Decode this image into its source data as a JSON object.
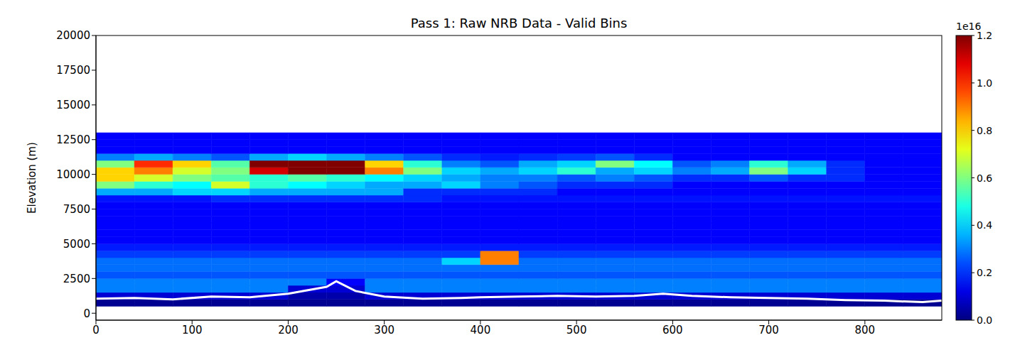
{
  "chart_data": {
    "type": "heatmap",
    "title": "Pass 1: Raw NRB Data - Valid Bins",
    "y_label": "Elevation (m)",
    "grid": false,
    "xlim": [
      0,
      880
    ],
    "xticks": [
      0,
      100,
      200,
      300,
      400,
      500,
      600,
      700,
      800
    ],
    "ylim": [
      -500,
      20000
    ],
    "yticks": [
      0,
      2500,
      5000,
      7500,
      10000,
      12500,
      15000,
      17500,
      20000
    ],
    "cells": {
      "x_edges": [
        0,
        40,
        80,
        120,
        160,
        200,
        240,
        280,
        320,
        360,
        400,
        440,
        480,
        520,
        560,
        600,
        640,
        680,
        720,
        760,
        800,
        840,
        880
      ],
      "y_edges": [
        500,
        1000,
        1500,
        2000,
        2500,
        3000,
        3500,
        4000,
        4500,
        5000,
        5500,
        6000,
        6500,
        7000,
        7500,
        8000,
        8500,
        9000,
        9500,
        10000,
        10500,
        11000,
        11500,
        12000,
        12500,
        13000
      ],
      "values": [
        [
          0.02,
          0.02,
          0.02,
          0.02,
          0.02,
          0.02,
          0.02,
          0.02,
          0.02,
          0.02,
          0.02,
          0.02,
          0.02,
          0.02,
          0.02,
          0.02,
          0.02,
          0.02,
          0.02,
          0.02,
          0.02,
          0.02
        ],
        [
          0.1,
          0.1,
          0.1,
          0.1,
          0.1,
          0.05,
          0.05,
          0.1,
          0.1,
          0.1,
          0.1,
          0.1,
          0.1,
          0.1,
          0.1,
          0.1,
          0.1,
          0.1,
          0.1,
          0.1,
          0.1,
          0.1
        ],
        [
          0.3,
          0.3,
          0.3,
          0.3,
          0.3,
          0.1,
          0.1,
          0.3,
          0.3,
          0.3,
          0.3,
          0.3,
          0.3,
          0.3,
          0.3,
          0.3,
          0.3,
          0.3,
          0.3,
          0.3,
          0.3,
          0.3
        ],
        [
          0.3,
          0.3,
          0.3,
          0.3,
          0.3,
          0.3,
          0.15,
          0.3,
          0.3,
          0.3,
          0.3,
          0.3,
          0.3,
          0.3,
          0.3,
          0.3,
          0.3,
          0.3,
          0.3,
          0.3,
          0.3,
          0.3
        ],
        [
          0.25,
          0.25,
          0.25,
          0.25,
          0.25,
          0.25,
          0.25,
          0.25,
          0.25,
          0.25,
          0.25,
          0.25,
          0.25,
          0.25,
          0.25,
          0.25,
          0.25,
          0.25,
          0.25,
          0.25,
          0.25,
          0.25
        ],
        [
          0.28,
          0.28,
          0.28,
          0.28,
          0.28,
          0.28,
          0.28,
          0.28,
          0.28,
          0.28,
          0.28,
          0.28,
          0.28,
          0.28,
          0.28,
          0.28,
          0.28,
          0.28,
          0.28,
          0.28,
          0.28,
          0.28
        ],
        [
          0.28,
          0.28,
          0.28,
          0.28,
          0.28,
          0.28,
          0.28,
          0.28,
          0.28,
          0.4,
          0.9,
          0.28,
          0.28,
          0.28,
          0.28,
          0.28,
          0.28,
          0.28,
          0.28,
          0.28,
          0.28,
          0.28
        ],
        [
          0.22,
          0.22,
          0.22,
          0.22,
          0.22,
          0.22,
          0.22,
          0.22,
          0.22,
          0.22,
          0.9,
          0.22,
          0.22,
          0.22,
          0.22,
          0.22,
          0.22,
          0.22,
          0.22,
          0.22,
          0.22,
          0.22
        ],
        [
          0.18,
          0.18,
          0.18,
          0.18,
          0.18,
          0.18,
          0.18,
          0.18,
          0.18,
          0.18,
          0.18,
          0.18,
          0.18,
          0.18,
          0.18,
          0.18,
          0.18,
          0.18,
          0.18,
          0.18,
          0.18,
          0.18
        ],
        [
          0.15,
          0.15,
          0.15,
          0.15,
          0.15,
          0.15,
          0.15,
          0.15,
          0.15,
          0.15,
          0.15,
          0.15,
          0.15,
          0.15,
          0.15,
          0.15,
          0.15,
          0.15,
          0.15,
          0.15,
          0.15,
          0.15
        ],
        [
          0.15,
          0.15,
          0.15,
          0.15,
          0.15,
          0.15,
          0.15,
          0.15,
          0.15,
          0.15,
          0.15,
          0.15,
          0.15,
          0.15,
          0.15,
          0.15,
          0.15,
          0.15,
          0.15,
          0.15,
          0.15,
          0.15
        ],
        [
          0.15,
          0.15,
          0.15,
          0.15,
          0.15,
          0.15,
          0.15,
          0.15,
          0.15,
          0.15,
          0.15,
          0.15,
          0.15,
          0.15,
          0.15,
          0.15,
          0.15,
          0.15,
          0.15,
          0.15,
          0.15,
          0.15
        ],
        [
          0.15,
          0.15,
          0.15,
          0.15,
          0.15,
          0.15,
          0.15,
          0.15,
          0.15,
          0.15,
          0.15,
          0.15,
          0.15,
          0.15,
          0.15,
          0.15,
          0.15,
          0.15,
          0.15,
          0.15,
          0.15,
          0.15
        ],
        [
          0.15,
          0.15,
          0.15,
          0.15,
          0.15,
          0.15,
          0.15,
          0.15,
          0.15,
          0.15,
          0.15,
          0.15,
          0.15,
          0.15,
          0.15,
          0.15,
          0.15,
          0.15,
          0.15,
          0.15,
          0.15,
          0.15
        ],
        [
          0.15,
          0.15,
          0.15,
          0.15,
          0.15,
          0.15,
          0.15,
          0.15,
          0.15,
          0.15,
          0.15,
          0.15,
          0.15,
          0.15,
          0.15,
          0.15,
          0.15,
          0.15,
          0.15,
          0.15,
          0.15,
          0.15
        ],
        [
          0.17,
          0.17,
          0.17,
          0.2,
          0.2,
          0.2,
          0.2,
          0.2,
          0.2,
          0.17,
          0.17,
          0.17,
          0.17,
          0.17,
          0.17,
          0.17,
          0.17,
          0.17,
          0.17,
          0.17,
          0.17,
          0.17
        ],
        [
          0.35,
          0.35,
          0.4,
          0.4,
          0.35,
          0.35,
          0.35,
          0.35,
          0.2,
          0.2,
          0.2,
          0.2,
          0.15,
          0.15,
          0.15,
          0.15,
          0.15,
          0.15,
          0.15,
          0.15,
          0.15,
          0.15
        ],
        [
          0.6,
          0.5,
          0.45,
          0.7,
          0.5,
          0.45,
          0.4,
          0.35,
          0.35,
          0.4,
          0.3,
          0.25,
          0.2,
          0.2,
          0.2,
          0.15,
          0.15,
          0.15,
          0.15,
          0.15,
          0.15,
          0.15
        ],
        [
          0.8,
          0.7,
          0.6,
          0.55,
          0.5,
          0.55,
          0.5,
          0.45,
          0.4,
          0.35,
          0.3,
          0.3,
          0.25,
          0.3,
          0.25,
          0.2,
          0.2,
          0.25,
          0.2,
          0.2,
          0.15,
          0.15
        ],
        [
          0.8,
          0.9,
          0.7,
          0.6,
          1.1,
          1.2,
          1.2,
          0.9,
          0.6,
          0.4,
          0.35,
          0.4,
          0.5,
          0.35,
          0.4,
          0.3,
          0.35,
          0.6,
          0.4,
          0.2,
          0.15,
          0.15
        ],
        [
          0.6,
          1.0,
          0.8,
          0.55,
          1.2,
          1.2,
          1.2,
          0.8,
          0.5,
          0.3,
          0.25,
          0.35,
          0.4,
          0.6,
          0.45,
          0.25,
          0.3,
          0.5,
          0.35,
          0.2,
          0.15,
          0.15
        ],
        [
          0.3,
          0.35,
          0.3,
          0.25,
          0.35,
          0.4,
          0.35,
          0.3,
          0.25,
          0.2,
          0.18,
          0.2,
          0.22,
          0.25,
          0.2,
          0.15,
          0.15,
          0.15,
          0.15,
          0.15,
          0.15,
          0.15
        ],
        [
          0.15,
          0.15,
          0.15,
          0.15,
          0.15,
          0.15,
          0.15,
          0.15,
          0.15,
          0.15,
          0.15,
          0.15,
          0.15,
          0.15,
          0.15,
          0.15,
          0.15,
          0.15,
          0.15,
          0.15,
          0.15,
          0.15
        ],
        [
          0.15,
          0.15,
          0.15,
          0.15,
          0.15,
          0.15,
          0.15,
          0.15,
          0.15,
          0.15,
          0.15,
          0.15,
          0.15,
          0.15,
          0.15,
          0.15,
          0.15,
          0.15,
          0.15,
          0.15,
          0.15,
          0.15
        ],
        [
          0.15,
          0.15,
          0.15,
          0.15,
          0.15,
          0.15,
          0.15,
          0.15,
          0.15,
          0.15,
          0.15,
          0.15,
          0.15,
          0.15,
          0.15,
          0.15,
          0.15,
          0.15,
          0.15,
          0.15,
          0.15,
          0.15
        ]
      ]
    },
    "colorbar": {
      "range": [
        0,
        1.2
      ],
      "ticks": [
        {
          "value": 0,
          "label": "0.0"
        },
        {
          "value": 0.2,
          "label": "0.2"
        },
        {
          "value": 0.4,
          "label": "0.4"
        },
        {
          "value": 0.6,
          "label": "0.6"
        },
        {
          "value": 0.8,
          "label": "0.8"
        },
        {
          "value": 1.0,
          "label": "1.0"
        },
        {
          "value": 1.2,
          "label": "1.2"
        }
      ],
      "offset_label": "1e16"
    },
    "line": {
      "color": "#ffffff",
      "x": [
        0,
        40,
        80,
        120,
        160,
        200,
        240,
        250,
        270,
        300,
        340,
        380,
        400,
        440,
        480,
        520,
        560,
        590,
        620,
        660,
        700,
        740,
        780,
        820,
        860,
        880
      ],
      "values": [
        1050,
        1100,
        1000,
        1200,
        1150,
        1400,
        1900,
        2300,
        1600,
        1200,
        1050,
        1100,
        1150,
        1200,
        1250,
        1200,
        1250,
        1400,
        1250,
        1150,
        1100,
        1050,
        950,
        900,
        800,
        900
      ]
    }
  }
}
